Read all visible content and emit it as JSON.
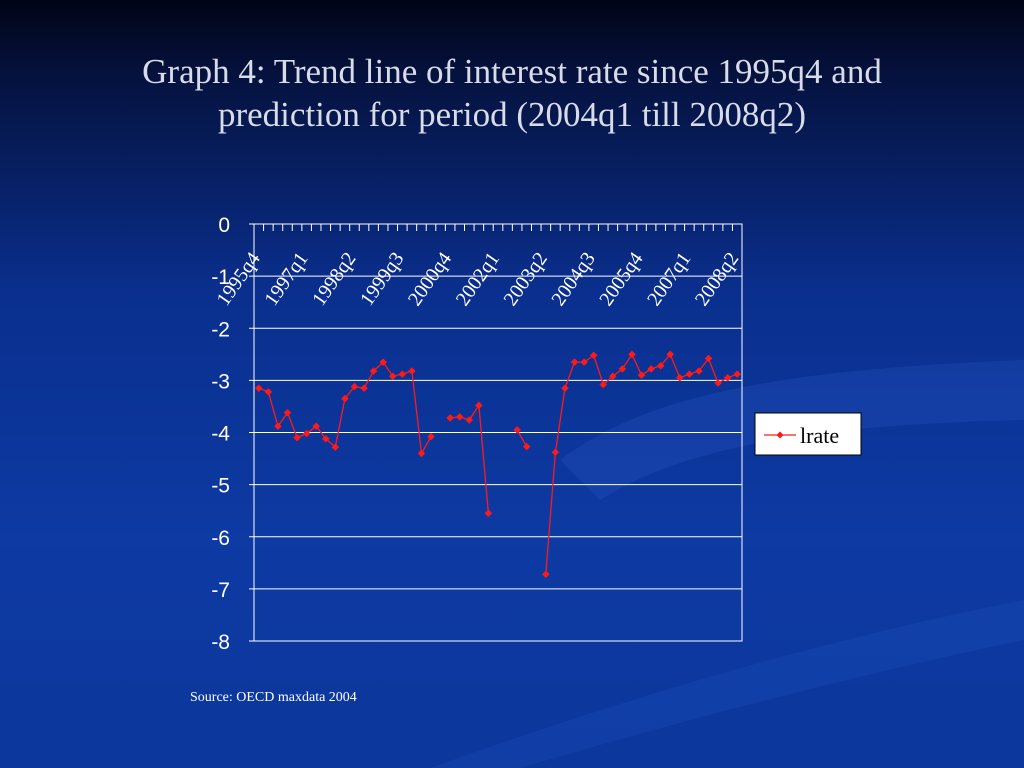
{
  "slide": {
    "title_line1": "Graph 4: Trend line of interest rate since 1995q4 and",
    "title_line2": "prediction for period (2004q1 till 2008q2)",
    "source": "Source: OECD maxdata 2004"
  },
  "colors": {
    "series": "#ff1a1a",
    "grid": "#ffffff",
    "text": "#ffffff",
    "title": "#d8dce8"
  },
  "chart_data": {
    "type": "line",
    "title": "",
    "xlabel": "",
    "ylabel": "",
    "ylim": [
      -8,
      0
    ],
    "yticks": [
      0,
      -1,
      -2,
      -3,
      -4,
      -5,
      -6,
      -7,
      -8
    ],
    "grid": true,
    "legend_position": "right",
    "x_tick_labels": [
      "1995q4",
      "1997q1",
      "1998q2",
      "1999q3",
      "2000q4",
      "2002q1",
      "2003q2",
      "2004q3",
      "2005q4",
      "2007q1",
      "2008q2"
    ],
    "x_label_interval": 5,
    "series": [
      {
        "name": "lrate",
        "values": [
          -3.15,
          -3.22,
          -3.88,
          -3.62,
          -4.1,
          -4.02,
          -3.88,
          -4.12,
          -4.28,
          -3.35,
          -3.12,
          -3.15,
          -2.82,
          -2.65,
          -2.92,
          -2.88,
          -2.82,
          -4.4,
          -4.08,
          null,
          -3.72,
          -3.7,
          -3.76,
          -3.48,
          -5.55,
          null,
          null,
          -3.95,
          -4.27,
          null,
          -6.72,
          -4.38,
          -3.15,
          -2.65,
          -2.65,
          -2.52,
          -3.08,
          -2.92,
          -2.78,
          -2.5,
          -2.9,
          -2.78,
          -2.72,
          -2.5,
          -2.95,
          -2.88,
          -2.82,
          -2.58,
          -3.05,
          -2.95,
          -2.88
        ]
      }
    ]
  }
}
